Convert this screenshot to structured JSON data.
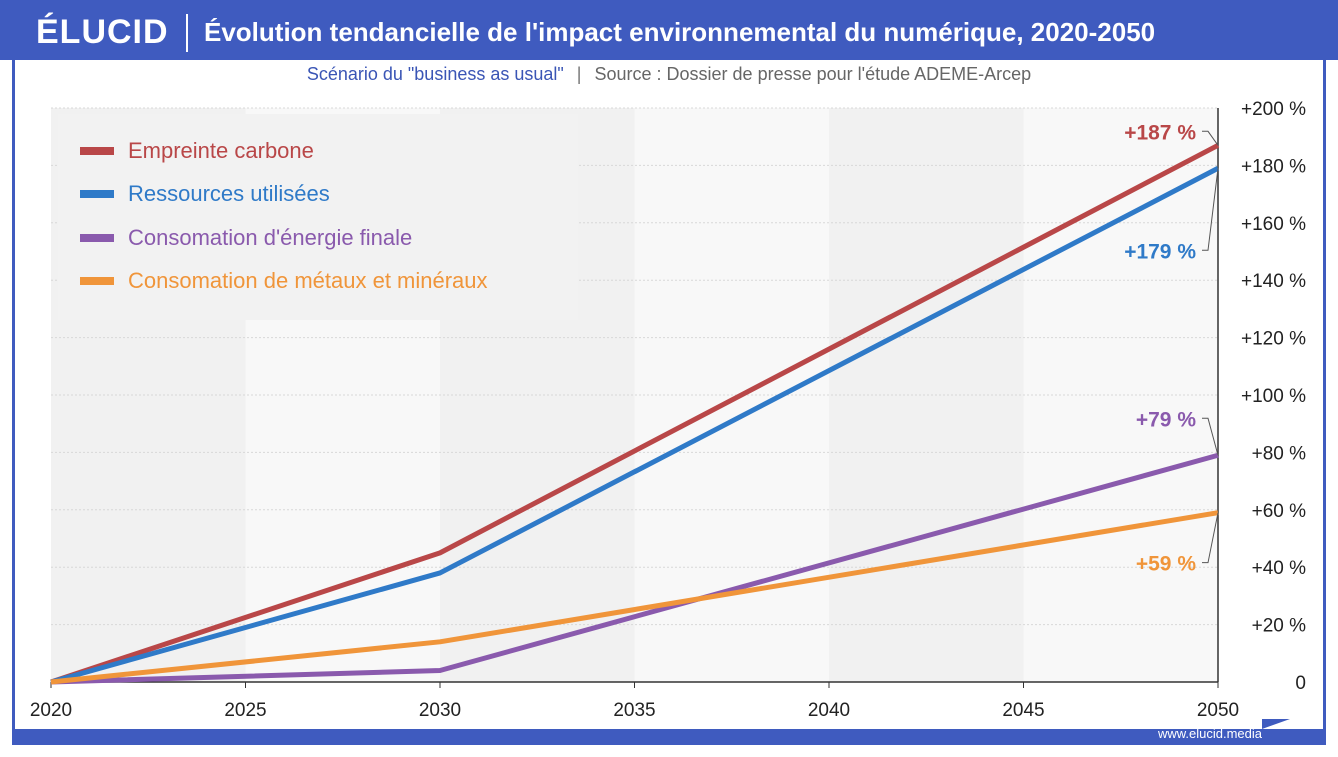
{
  "brand": {
    "logo": "ÉLUCID",
    "url": "www.elucid.media"
  },
  "header": {
    "title": "Évolution tendancielle de l'impact environnemental du numérique, 2020-2050",
    "subtitle": "Scénario du \"business as usual\"",
    "separator": "|",
    "source": "Source : Dossier de presse pour l'étude ADEME-Arcep"
  },
  "colors": {
    "frame": "#3f5bbf",
    "carbon": "#b94748",
    "resources": "#2f7ac8",
    "energy": "#8a5aad",
    "metals": "#f0953a"
  },
  "chart_data": {
    "type": "line",
    "title": "Évolution tendancielle de l'impact environnemental du numérique, 2020-2050",
    "subtitle": "Scénario du \"business as usual\"",
    "x": [
      2020,
      2030,
      2050
    ],
    "x_ticks": [
      2020,
      2025,
      2030,
      2035,
      2040,
      2045,
      2050
    ],
    "y_ticks": [
      0,
      20,
      40,
      60,
      80,
      100,
      120,
      140,
      160,
      180,
      200
    ],
    "y_tick_labels": [
      "0",
      "+20 %",
      "+40 %",
      "+60 %",
      "+80 %",
      "+100 %",
      "+120 %",
      "+140 %",
      "+160 %",
      "+180 %",
      "+200 %"
    ],
    "xlim": [
      2020,
      2050
    ],
    "ylim": [
      0,
      200
    ],
    "y_axis_side": "right",
    "grid": true,
    "legend_position": "top-left",
    "series": [
      {
        "name": "Empreinte carbone",
        "color": "#b94748",
        "values": [
          0,
          45,
          187
        ],
        "end_label": "+187 %"
      },
      {
        "name": "Ressources utilisées",
        "color": "#2f7ac8",
        "values": [
          0,
          38,
          179
        ],
        "end_label": "+179 %"
      },
      {
        "name": "Consomation d'énergie finale",
        "color": "#8a5aad",
        "values": [
          0,
          4,
          79
        ],
        "end_label": "+79 %"
      },
      {
        "name": "Consomation de métaux et minéraux",
        "color": "#f0953a",
        "values": [
          0,
          14,
          59
        ],
        "end_label": "+59 %"
      }
    ]
  }
}
